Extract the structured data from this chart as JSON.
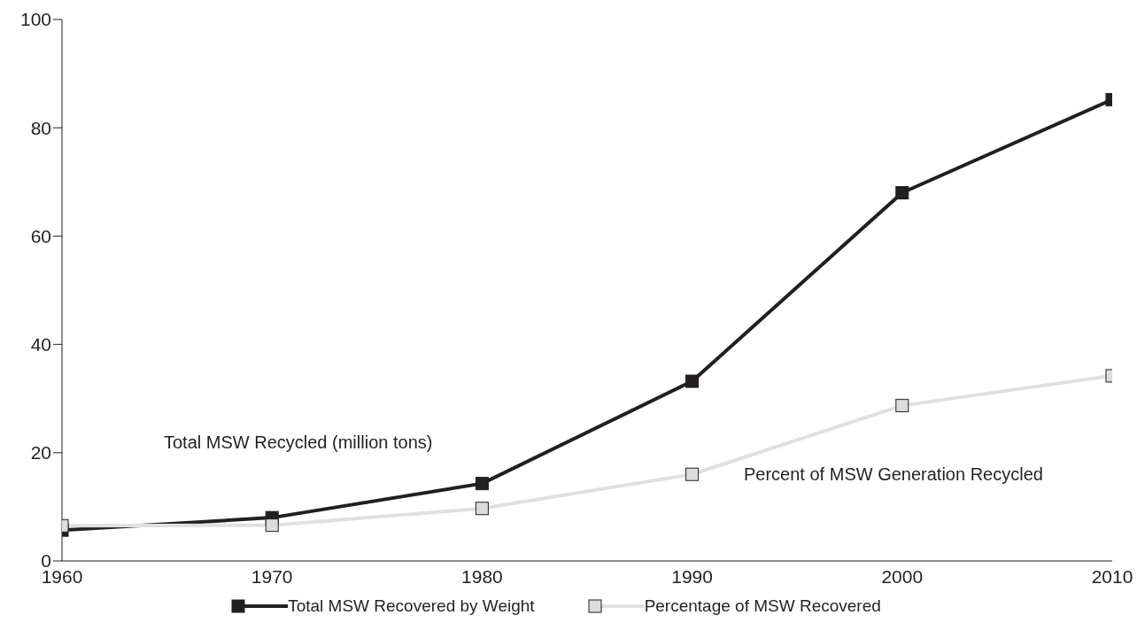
{
  "chart_data": {
    "type": "line",
    "x": [
      1960,
      1970,
      1980,
      1990,
      2000,
      2010
    ],
    "series": [
      {
        "name": "Total MSW Recovered by Weight",
        "color": "#231f20",
        "values": [
          5.7,
          8.0,
          14.3,
          33.2,
          68.0,
          85.2
        ]
      },
      {
        "name": "Percentage of MSW Recovered",
        "color": "#e0e0e0",
        "values": [
          6.5,
          6.6,
          9.7,
          16.0,
          28.7,
          34.2
        ]
      }
    ],
    "xlim": [
      1960,
      2010
    ],
    "xticks": [
      1960,
      1970,
      1980,
      1990,
      2000,
      2010
    ],
    "ylim": [
      0,
      100
    ],
    "yticks": [
      0,
      20,
      40,
      60,
      80,
      100
    ],
    "annotations": [
      "Total MSW Recycled (million tons)",
      "Percent of MSW Generation Recycled"
    ],
    "marker": "square",
    "grid": false,
    "legend": "bottom"
  }
}
